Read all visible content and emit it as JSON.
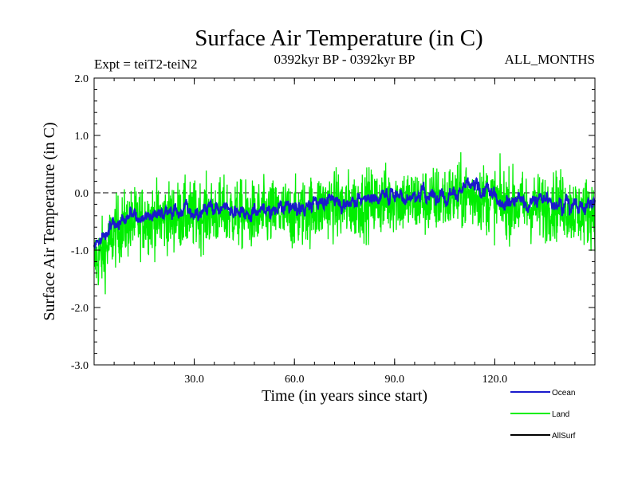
{
  "chart_data": {
    "type": "line",
    "title": "Surface Air Temperature (in C)",
    "subtitle": "0392kyr BP - 0392kyr BP",
    "experiment_label": "Expt = teiT2-teiN2",
    "period_label": "ALL_MONTHS",
    "xlabel": "Time (in years since start)",
    "ylabel": "Surface Air Temperature (in C)",
    "xlim": [
      0,
      150
    ],
    "ylim": [
      -3.0,
      2.0
    ],
    "x_ticks": [
      30,
      60,
      90,
      120
    ],
    "x_tick_labels": [
      "30.0",
      "60.0",
      "90.0",
      "120.0"
    ],
    "y_ticks": [
      -3.0,
      -2.0,
      -1.0,
      0.0,
      1.0,
      2.0
    ],
    "y_tick_labels": [
      "-3.0",
      "-2.0",
      "-1.0",
      "0.0",
      "1.0",
      "2.0"
    ],
    "reference_line": 0.0,
    "legend_position": "bottom-right",
    "series": [
      {
        "name": "Ocean",
        "color": "#1a1acc",
        "x": [
          0,
          2,
          4,
          6,
          8,
          10,
          15,
          20,
          25,
          30,
          35,
          40,
          45,
          50,
          55,
          60,
          65,
          70,
          75,
          80,
          85,
          90,
          95,
          100,
          105,
          110,
          115,
          120,
          125,
          130,
          135,
          140,
          145,
          150
        ],
        "values": [
          -1.0,
          -0.9,
          -0.75,
          -0.55,
          -0.45,
          -0.45,
          -0.35,
          -0.35,
          -0.3,
          -0.3,
          -0.25,
          -0.25,
          -0.3,
          -0.3,
          -0.25,
          -0.3,
          -0.2,
          -0.1,
          -0.15,
          -0.1,
          -0.05,
          0.0,
          -0.05,
          -0.05,
          0.0,
          0.05,
          0.05,
          -0.05,
          -0.1,
          -0.15,
          -0.15,
          -0.1,
          -0.25,
          -0.2
        ]
      },
      {
        "name": "Land",
        "color": "#00ee00",
        "x": [
          0,
          2,
          4,
          6,
          8,
          10,
          15,
          20,
          25,
          30,
          35,
          40,
          45,
          50,
          55,
          60,
          65,
          70,
          75,
          80,
          85,
          90,
          95,
          100,
          105,
          110,
          115,
          120,
          125,
          130,
          135,
          140,
          145,
          150
        ],
        "values": [
          -1.2,
          -1.1,
          -0.95,
          -0.7,
          -0.6,
          -0.55,
          -0.45,
          -0.45,
          -0.4,
          -0.4,
          -0.35,
          -0.35,
          -0.4,
          -0.4,
          -0.35,
          -0.4,
          -0.3,
          -0.2,
          -0.25,
          -0.2,
          -0.15,
          -0.1,
          -0.15,
          -0.15,
          -0.1,
          -0.05,
          -0.05,
          -0.15,
          -0.2,
          -0.25,
          -0.25,
          -0.2,
          -0.35,
          -0.3
        ]
      },
      {
        "name": "AllSurf",
        "color": "#000000",
        "x": [],
        "values": []
      }
    ]
  }
}
